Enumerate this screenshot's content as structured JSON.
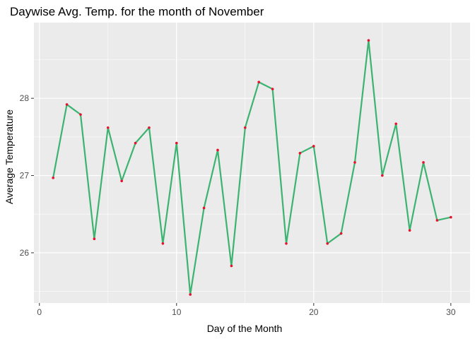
{
  "chart_data": {
    "type": "line",
    "title": "Daywise Avg. Temp. for the month of November",
    "xlabel": "Day of the Month",
    "ylabel": "Average Temperature",
    "xlim": [
      -0.4,
      31.4
    ],
    "ylim": [
      25.35,
      28.98
    ],
    "x_ticks": [
      0,
      10,
      20,
      30
    ],
    "y_ticks": [
      26,
      27,
      28
    ],
    "x_tick_labels": [
      "0",
      "10",
      "20",
      "30"
    ],
    "y_tick_labels": [
      "26",
      "27",
      "28"
    ],
    "grid": true,
    "legend": "none",
    "colors": {
      "panel_background": "#ebebeb",
      "grid_major": "#ffffff",
      "line": "#3cb371",
      "point": "#e8112d",
      "tick": "#333333"
    },
    "series": [
      {
        "x": [
          1,
          2,
          3,
          4,
          5,
          6,
          7,
          8,
          9,
          10,
          11,
          12,
          13,
          14,
          15,
          16,
          17,
          18,
          19,
          20,
          21,
          22,
          23,
          24,
          25,
          26,
          27,
          28,
          29,
          30
        ],
        "values": [
          26.97,
          27.92,
          27.79,
          26.18,
          27.62,
          26.93,
          27.42,
          27.62,
          26.12,
          27.42,
          25.46,
          26.58,
          27.33,
          25.83,
          27.62,
          28.21,
          28.12,
          26.12,
          27.29,
          27.38,
          26.12,
          26.25,
          27.17,
          28.75,
          27.0,
          27.67,
          26.29,
          27.17,
          26.42,
          26.46
        ]
      }
    ]
  }
}
